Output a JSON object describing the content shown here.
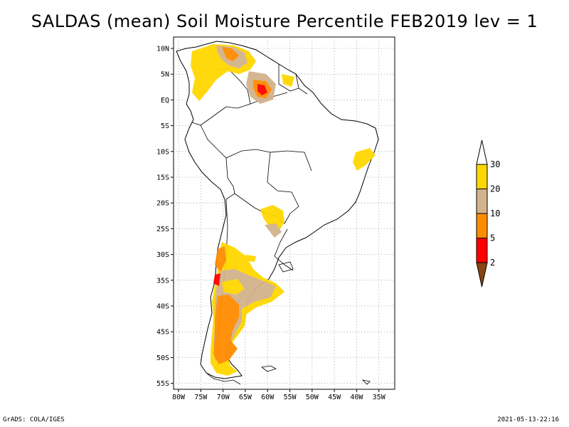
{
  "title": "SALDAS (mean) Soil Moisture Percentile FEB2019 lev = 1",
  "lat_labels": [
    "10N",
    "5N",
    "EQ",
    "5S",
    "10S",
    "15S",
    "20S",
    "25S",
    "30S",
    "35S",
    "40S",
    "45S",
    "50S",
    "55S"
  ],
  "lon_labels": [
    "80W",
    "75W",
    "70W",
    "65W",
    "60W",
    "55W",
    "50W",
    "45W",
    "40W",
    "35W"
  ],
  "legend": {
    "levels": [
      "2",
      "5",
      "10",
      "20",
      "30"
    ],
    "colors": [
      "#8B4513",
      "#FF0000",
      "#FF8C00",
      "#D2B48C",
      "#FFD700",
      "#FFFFFF"
    ]
  },
  "footer": {
    "left": "GrADS: COLA/IGES",
    "right": "2021-05-13-22:16"
  }
}
